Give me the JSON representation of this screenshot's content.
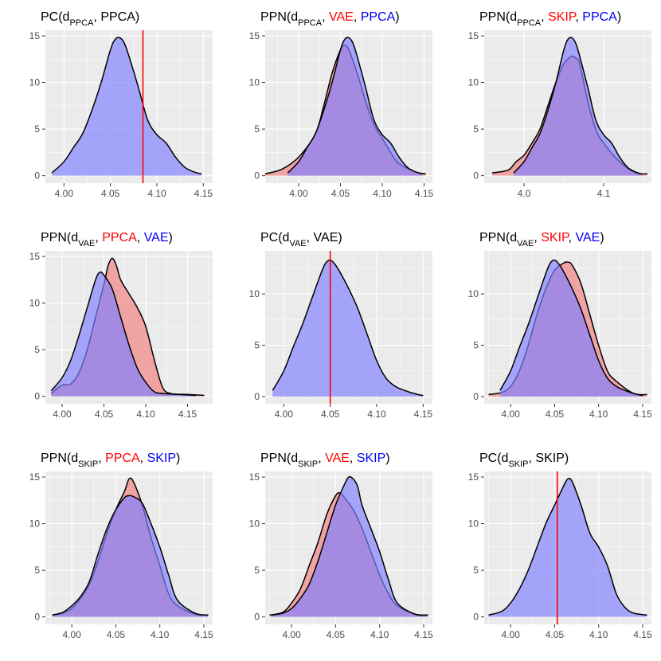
{
  "colors": {
    "red": "#ff0000",
    "blue": "#0000ff",
    "fill_red": "#f08080",
    "fill_blue": "#8080ff",
    "vline": "#ff0000",
    "panel_bg": "#ebebeb",
    "grid": "#ffffff"
  },
  "chart_data": [
    {
      "type": "area",
      "title": [
        {
          "t": "PC(d",
          "c": "black"
        },
        {
          "t": "PPCA",
          "c": "black",
          "sub": true
        },
        {
          "t": ", PPCA)",
          "c": "black"
        }
      ],
      "xlim": [
        3.98,
        4.16
      ],
      "ylim": [
        -0.8,
        15.6
      ],
      "xticks": [
        4.0,
        4.05,
        4.1,
        4.15
      ],
      "xtick_labels": [
        "4.00",
        "4.05",
        "4.10",
        "4.15"
      ],
      "yticks": [
        0,
        5,
        10,
        15
      ],
      "vline": 4.085,
      "series": [
        {
          "color": "blue",
          "x": [
            3.987,
            4.0,
            4.01,
            4.02,
            4.03,
            4.04,
            4.05,
            4.055,
            4.06,
            4.065,
            4.07,
            4.08,
            4.09,
            4.1,
            4.11,
            4.12,
            4.13,
            4.14,
            4.148
          ],
          "y": [
            0.3,
            1.5,
            3.0,
            4.5,
            7.0,
            10.0,
            13.5,
            14.6,
            14.8,
            14.2,
            12.8,
            9.5,
            6.0,
            4.4,
            3.5,
            2.0,
            0.9,
            0.4,
            0.2
          ]
        }
      ]
    },
    {
      "type": "area",
      "title": [
        {
          "t": "PPN(d",
          "c": "black"
        },
        {
          "t": "PPCA",
          "c": "black",
          "sub": true
        },
        {
          "t": ", ",
          "c": "black"
        },
        {
          "t": "VAE",
          "c": "red"
        },
        {
          "t": ", ",
          "c": "black"
        },
        {
          "t": "PPCA",
          "c": "blue"
        },
        {
          "t": ")",
          "c": "black"
        }
      ],
      "xlim": [
        3.96,
        4.16
      ],
      "ylim": [
        -0.8,
        15.6
      ],
      "xticks": [
        4.0,
        4.05,
        4.1,
        4.15
      ],
      "xtick_labels": [
        "4.00",
        "4.05",
        "4.10",
        "4.15"
      ],
      "yticks": [
        0,
        5,
        10,
        15
      ],
      "series": [
        {
          "color": "red",
          "x": [
            3.96,
            3.98,
            4.0,
            4.02,
            4.03,
            4.04,
            4.05,
            4.055,
            4.06,
            4.07,
            4.08,
            4.09,
            4.1,
            4.11,
            4.12,
            4.14,
            4.152
          ],
          "y": [
            0.2,
            0.7,
            2.0,
            4.5,
            7.5,
            11.0,
            13.5,
            14.0,
            13.5,
            11.0,
            8.0,
            5.5,
            4.0,
            2.5,
            1.3,
            0.4,
            0.2
          ]
        },
        {
          "color": "blue",
          "x": [
            3.987,
            4.0,
            4.01,
            4.02,
            4.03,
            4.04,
            4.05,
            4.055,
            4.06,
            4.065,
            4.07,
            4.08,
            4.09,
            4.1,
            4.11,
            4.12,
            4.13,
            4.14,
            4.148
          ],
          "y": [
            0.3,
            1.5,
            3.0,
            4.5,
            7.0,
            10.0,
            13.5,
            14.6,
            14.8,
            14.2,
            12.8,
            9.5,
            6.0,
            4.4,
            3.5,
            2.0,
            0.9,
            0.4,
            0.2
          ]
        }
      ]
    },
    {
      "type": "area",
      "title": [
        {
          "t": "PPN(d",
          "c": "black"
        },
        {
          "t": "PPCA",
          "c": "black",
          "sub": true
        },
        {
          "t": ", ",
          "c": "black"
        },
        {
          "t": "SKIP",
          "c": "red"
        },
        {
          "t": ", ",
          "c": "black"
        },
        {
          "t": "PPCA",
          "c": "blue"
        },
        {
          "t": ")",
          "c": "black"
        }
      ],
      "xlim": [
        3.95,
        4.16
      ],
      "ylim": [
        -0.8,
        15.6
      ],
      "xticks": [
        4.0,
        4.1
      ],
      "xtick_labels": [
        "4.0",
        "4.1"
      ],
      "yticks": [
        0,
        5,
        10,
        15
      ],
      "series": [
        {
          "color": "red",
          "x": [
            3.96,
            3.98,
            3.99,
            4.0,
            4.01,
            4.02,
            4.03,
            4.04,
            4.05,
            4.06,
            4.065,
            4.07,
            4.08,
            4.09,
            4.1,
            4.12,
            4.14,
            4.155
          ],
          "y": [
            0.3,
            0.6,
            1.5,
            2.2,
            3.5,
            5.0,
            7.5,
            10.0,
            12.0,
            12.8,
            12.6,
            12.0,
            8.0,
            5.0,
            3.5,
            1.5,
            0.3,
            0.2
          ]
        },
        {
          "color": "blue",
          "x": [
            3.987,
            4.0,
            4.01,
            4.02,
            4.03,
            4.04,
            4.05,
            4.055,
            4.06,
            4.065,
            4.07,
            4.08,
            4.09,
            4.1,
            4.11,
            4.12,
            4.13,
            4.14,
            4.148
          ],
          "y": [
            0.3,
            1.5,
            3.0,
            4.5,
            7.0,
            10.0,
            13.5,
            14.6,
            14.8,
            14.2,
            12.8,
            9.5,
            6.0,
            4.4,
            3.5,
            2.0,
            0.9,
            0.4,
            0.2
          ]
        }
      ]
    },
    {
      "type": "area",
      "title": [
        {
          "t": "PPN(d",
          "c": "black"
        },
        {
          "t": "VAE",
          "c": "black",
          "sub": true
        },
        {
          "t": ", ",
          "c": "black"
        },
        {
          "t": "PPCA",
          "c": "red"
        },
        {
          "t": ", ",
          "c": "black"
        },
        {
          "t": "VAE",
          "c": "blue"
        },
        {
          "t": ")",
          "c": "black"
        }
      ],
      "xlim": [
        3.98,
        4.18
      ],
      "ylim": [
        -0.8,
        15.6
      ],
      "xticks": [
        4.0,
        4.05,
        4.1,
        4.15
      ],
      "xtick_labels": [
        "4.00",
        "4.05",
        "4.10",
        "4.15"
      ],
      "yticks": [
        0,
        5,
        10,
        15
      ],
      "series": [
        {
          "color": "red",
          "x": [
            3.987,
            4.0,
            4.01,
            4.02,
            4.03,
            4.04,
            4.05,
            4.055,
            4.06,
            4.065,
            4.07,
            4.08,
            4.09,
            4.1,
            4.11,
            4.12,
            4.13,
            4.15,
            4.17
          ],
          "y": [
            0.3,
            1.2,
            1.3,
            2.5,
            5.0,
            8.5,
            12.0,
            14.0,
            14.8,
            14.0,
            12.5,
            11.0,
            9.5,
            7.5,
            4.0,
            1.0,
            0.3,
            0.2,
            0.1
          ]
        },
        {
          "color": "blue",
          "x": [
            3.987,
            4.0,
            4.01,
            4.02,
            4.03,
            4.04,
            4.045,
            4.05,
            4.06,
            4.07,
            4.08,
            4.09,
            4.1,
            4.11,
            4.12,
            4.14,
            4.16
          ],
          "y": [
            0.6,
            2.0,
            3.8,
            6.5,
            9.5,
            12.5,
            13.3,
            13.0,
            11.5,
            8.5,
            5.5,
            3.0,
            1.5,
            0.5,
            0.3,
            0.2,
            0.1
          ]
        }
      ]
    },
    {
      "type": "area",
      "title": [
        {
          "t": "PC(d",
          "c": "black"
        },
        {
          "t": "VAE",
          "c": "black",
          "sub": true
        },
        {
          "t": ", VAE)",
          "c": "black"
        }
      ],
      "xlim": [
        3.98,
        4.16
      ],
      "ylim": [
        -0.7,
        14.2
      ],
      "xticks": [
        4.0,
        4.05,
        4.1,
        4.15
      ],
      "xtick_labels": [
        "4.00",
        "4.05",
        "4.10",
        "4.15"
      ],
      "yticks": [
        0,
        5,
        10
      ],
      "vline": 4.05,
      "series": [
        {
          "color": "blue",
          "x": [
            3.988,
            4.0,
            4.01,
            4.02,
            4.03,
            4.04,
            4.045,
            4.05,
            4.055,
            4.06,
            4.07,
            4.08,
            4.09,
            4.1,
            4.11,
            4.12,
            4.13,
            4.14,
            4.15
          ],
          "y": [
            0.6,
            2.5,
            4.8,
            7.0,
            9.5,
            12.0,
            13.0,
            13.3,
            12.9,
            12.2,
            10.5,
            8.5,
            6.0,
            3.5,
            1.8,
            1.0,
            0.6,
            0.3,
            0.1
          ]
        }
      ]
    },
    {
      "type": "area",
      "title": [
        {
          "t": "PPN(d",
          "c": "black"
        },
        {
          "t": "VAE",
          "c": "black",
          "sub": true
        },
        {
          "t": ", ",
          "c": "black"
        },
        {
          "t": "SKIP",
          "c": "red"
        },
        {
          "t": ", ",
          "c": "black"
        },
        {
          "t": "VAE",
          "c": "blue"
        },
        {
          "t": ")",
          "c": "black"
        }
      ],
      "xlim": [
        3.97,
        4.16
      ],
      "ylim": [
        -0.7,
        14.2
      ],
      "xticks": [
        4.0,
        4.05,
        4.1,
        4.15
      ],
      "xtick_labels": [
        "4.00",
        "4.05",
        "4.10",
        "4.15"
      ],
      "yticks": [
        0,
        5,
        10
      ],
      "series": [
        {
          "color": "red",
          "x": [
            3.975,
            3.99,
            4.0,
            4.01,
            4.02,
            4.03,
            4.04,
            4.05,
            4.06,
            4.065,
            4.07,
            4.08,
            4.09,
            4.1,
            4.11,
            4.12,
            4.14,
            4.155
          ],
          "y": [
            0.2,
            0.4,
            1.0,
            2.5,
            5.0,
            8.0,
            10.5,
            12.3,
            13.0,
            13.1,
            12.8,
            11.0,
            8.0,
            5.0,
            2.5,
            1.5,
            0.3,
            0.2
          ]
        },
        {
          "color": "blue",
          "x": [
            3.988,
            4.0,
            4.01,
            4.02,
            4.03,
            4.04,
            4.045,
            4.05,
            4.055,
            4.06,
            4.07,
            4.08,
            4.09,
            4.1,
            4.11,
            4.12,
            4.13,
            4.14,
            4.15
          ],
          "y": [
            0.6,
            2.5,
            4.8,
            7.0,
            9.5,
            12.0,
            13.0,
            13.3,
            12.9,
            12.2,
            10.5,
            8.5,
            6.0,
            3.5,
            1.8,
            1.0,
            0.6,
            0.3,
            0.1
          ]
        }
      ]
    },
    {
      "type": "area",
      "title": [
        {
          "t": "PPN(d",
          "c": "black"
        },
        {
          "t": "SKIP",
          "c": "black",
          "sub": true
        },
        {
          "t": ", ",
          "c": "black"
        },
        {
          "t": "PPCA",
          "c": "red"
        },
        {
          "t": ", ",
          "c": "black"
        },
        {
          "t": "SKIP",
          "c": "blue"
        },
        {
          "t": ")",
          "c": "black"
        }
      ],
      "xlim": [
        3.97,
        4.16
      ],
      "ylim": [
        -0.8,
        15.6
      ],
      "xticks": [
        4.0,
        4.05,
        4.1,
        4.15
      ],
      "xtick_labels": [
        "4.00",
        "4.05",
        "4.10",
        "4.15"
      ],
      "yticks": [
        0,
        5,
        10,
        15
      ],
      "series": [
        {
          "color": "red",
          "x": [
            3.978,
            3.99,
            4.0,
            4.01,
            4.02,
            4.03,
            4.04,
            4.05,
            4.06,
            4.065,
            4.07,
            4.08,
            4.09,
            4.1,
            4.11,
            4.12,
            4.14,
            4.155
          ],
          "y": [
            0.2,
            0.4,
            0.9,
            2.0,
            3.5,
            6.0,
            9.0,
            11.5,
            13.5,
            14.8,
            14.5,
            12.0,
            8.5,
            5.5,
            2.5,
            1.2,
            0.3,
            0.2
          ]
        },
        {
          "color": "blue",
          "x": [
            3.978,
            3.99,
            4.0,
            4.01,
            4.02,
            4.03,
            4.04,
            4.05,
            4.06,
            4.065,
            4.07,
            4.08,
            4.09,
            4.1,
            4.11,
            4.12,
            4.14,
            4.155
          ],
          "y": [
            0.2,
            0.5,
            1.2,
            2.2,
            3.8,
            6.8,
            9.5,
            11.5,
            12.8,
            13.0,
            12.9,
            12.2,
            10.0,
            7.5,
            4.5,
            1.8,
            0.4,
            0.2
          ]
        }
      ]
    },
    {
      "type": "area",
      "title": [
        {
          "t": "PPN(d",
          "c": "black"
        },
        {
          "t": "SKIP",
          "c": "black",
          "sub": true
        },
        {
          "t": ", ",
          "c": "black"
        },
        {
          "t": "VAE",
          "c": "red"
        },
        {
          "t": ", ",
          "c": "black"
        },
        {
          "t": "SKIP",
          "c": "blue"
        },
        {
          "t": ")",
          "c": "black"
        }
      ],
      "xlim": [
        3.97,
        4.16
      ],
      "ylim": [
        -0.8,
        15.6
      ],
      "xticks": [
        4.0,
        4.05,
        4.1,
        4.15
      ],
      "xtick_labels": [
        "4.00",
        "4.05",
        "4.10",
        "4.15"
      ],
      "yticks": [
        0,
        5,
        10,
        15
      ],
      "series": [
        {
          "color": "red",
          "x": [
            3.975,
            3.99,
            4.0,
            4.01,
            4.02,
            4.03,
            4.04,
            4.05,
            4.055,
            4.06,
            4.07,
            4.08,
            4.09,
            4.1,
            4.11,
            4.12,
            4.14,
            4.155
          ],
          "y": [
            0.2,
            0.5,
            1.5,
            3.0,
            5.5,
            8.0,
            11.0,
            13.0,
            13.3,
            12.8,
            11.5,
            9.5,
            7.0,
            4.5,
            2.5,
            1.2,
            0.3,
            0.2
          ]
        },
        {
          "color": "blue",
          "x": [
            3.978,
            3.99,
            4.0,
            4.01,
            4.02,
            4.03,
            4.04,
            4.05,
            4.06,
            4.065,
            4.07,
            4.075,
            4.08,
            4.09,
            4.1,
            4.11,
            4.12,
            4.14,
            4.155
          ],
          "y": [
            0.2,
            0.4,
            0.9,
            2.0,
            3.5,
            6.0,
            9.0,
            12.0,
            14.2,
            15.0,
            14.8,
            14.0,
            12.0,
            9.5,
            7.0,
            4.0,
            1.5,
            0.3,
            0.2
          ]
        }
      ]
    },
    {
      "type": "area",
      "title": [
        {
          "t": "PC(d",
          "c": "black"
        },
        {
          "t": "SKIP",
          "c": "black",
          "sub": true
        },
        {
          "t": ", SKIP)",
          "c": "black"
        }
      ],
      "xlim": [
        3.97,
        4.16
      ],
      "ylim": [
        -0.8,
        15.6
      ],
      "xticks": [
        4.0,
        4.05,
        4.1,
        4.15
      ],
      "xtick_labels": [
        "4.00",
        "4.05",
        "4.10",
        "4.15"
      ],
      "yticks": [
        0,
        5,
        10,
        15
      ],
      "vline": 4.053,
      "series": [
        {
          "color": "blue",
          "x": [
            3.975,
            3.99,
            4.0,
            4.01,
            4.02,
            4.03,
            4.04,
            4.05,
            4.06,
            4.065,
            4.07,
            4.08,
            4.09,
            4.1,
            4.11,
            4.12,
            4.13,
            4.14,
            4.155
          ],
          "y": [
            0.2,
            0.6,
            1.5,
            3.0,
            5.0,
            7.5,
            10.0,
            12.0,
            14.0,
            14.8,
            14.5,
            12.0,
            9.0,
            7.5,
            5.5,
            2.5,
            1.0,
            0.4,
            0.2
          ]
        }
      ]
    }
  ]
}
